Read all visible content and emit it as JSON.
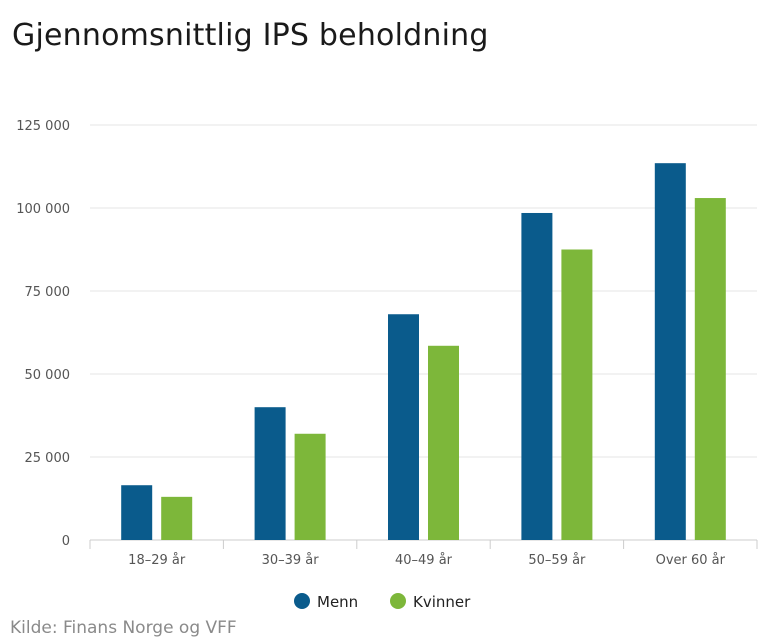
{
  "chart_data": {
    "type": "bar",
    "title": "Gjennomsnittlig IPS beholdning",
    "categories": [
      "18–29 år",
      "30–39 år",
      "40–49 år",
      "50–59 år",
      "Over 60 år"
    ],
    "series": [
      {
        "name": "Menn",
        "values": [
          16500,
          40000,
          68000,
          98500,
          113500
        ]
      },
      {
        "name": "Kvinner",
        "values": [
          13000,
          32000,
          58500,
          87500,
          103000
        ]
      }
    ],
    "ylim": [
      0,
      125000
    ],
    "yticks": [
      0,
      25000,
      50000,
      75000,
      100000,
      125000
    ],
    "ytick_labels": [
      "0",
      "25 000",
      "50 000",
      "75 000",
      "100 000",
      "125 000"
    ],
    "grid": true,
    "legend_position": "bottom-center"
  },
  "colors": {
    "Menn": "#0a5b8c",
    "Kvinner": "#7db73a",
    "grid": "#e6e6e6",
    "axis": "#cccccc"
  },
  "source": "Kilde: Finans Norge og VFF"
}
